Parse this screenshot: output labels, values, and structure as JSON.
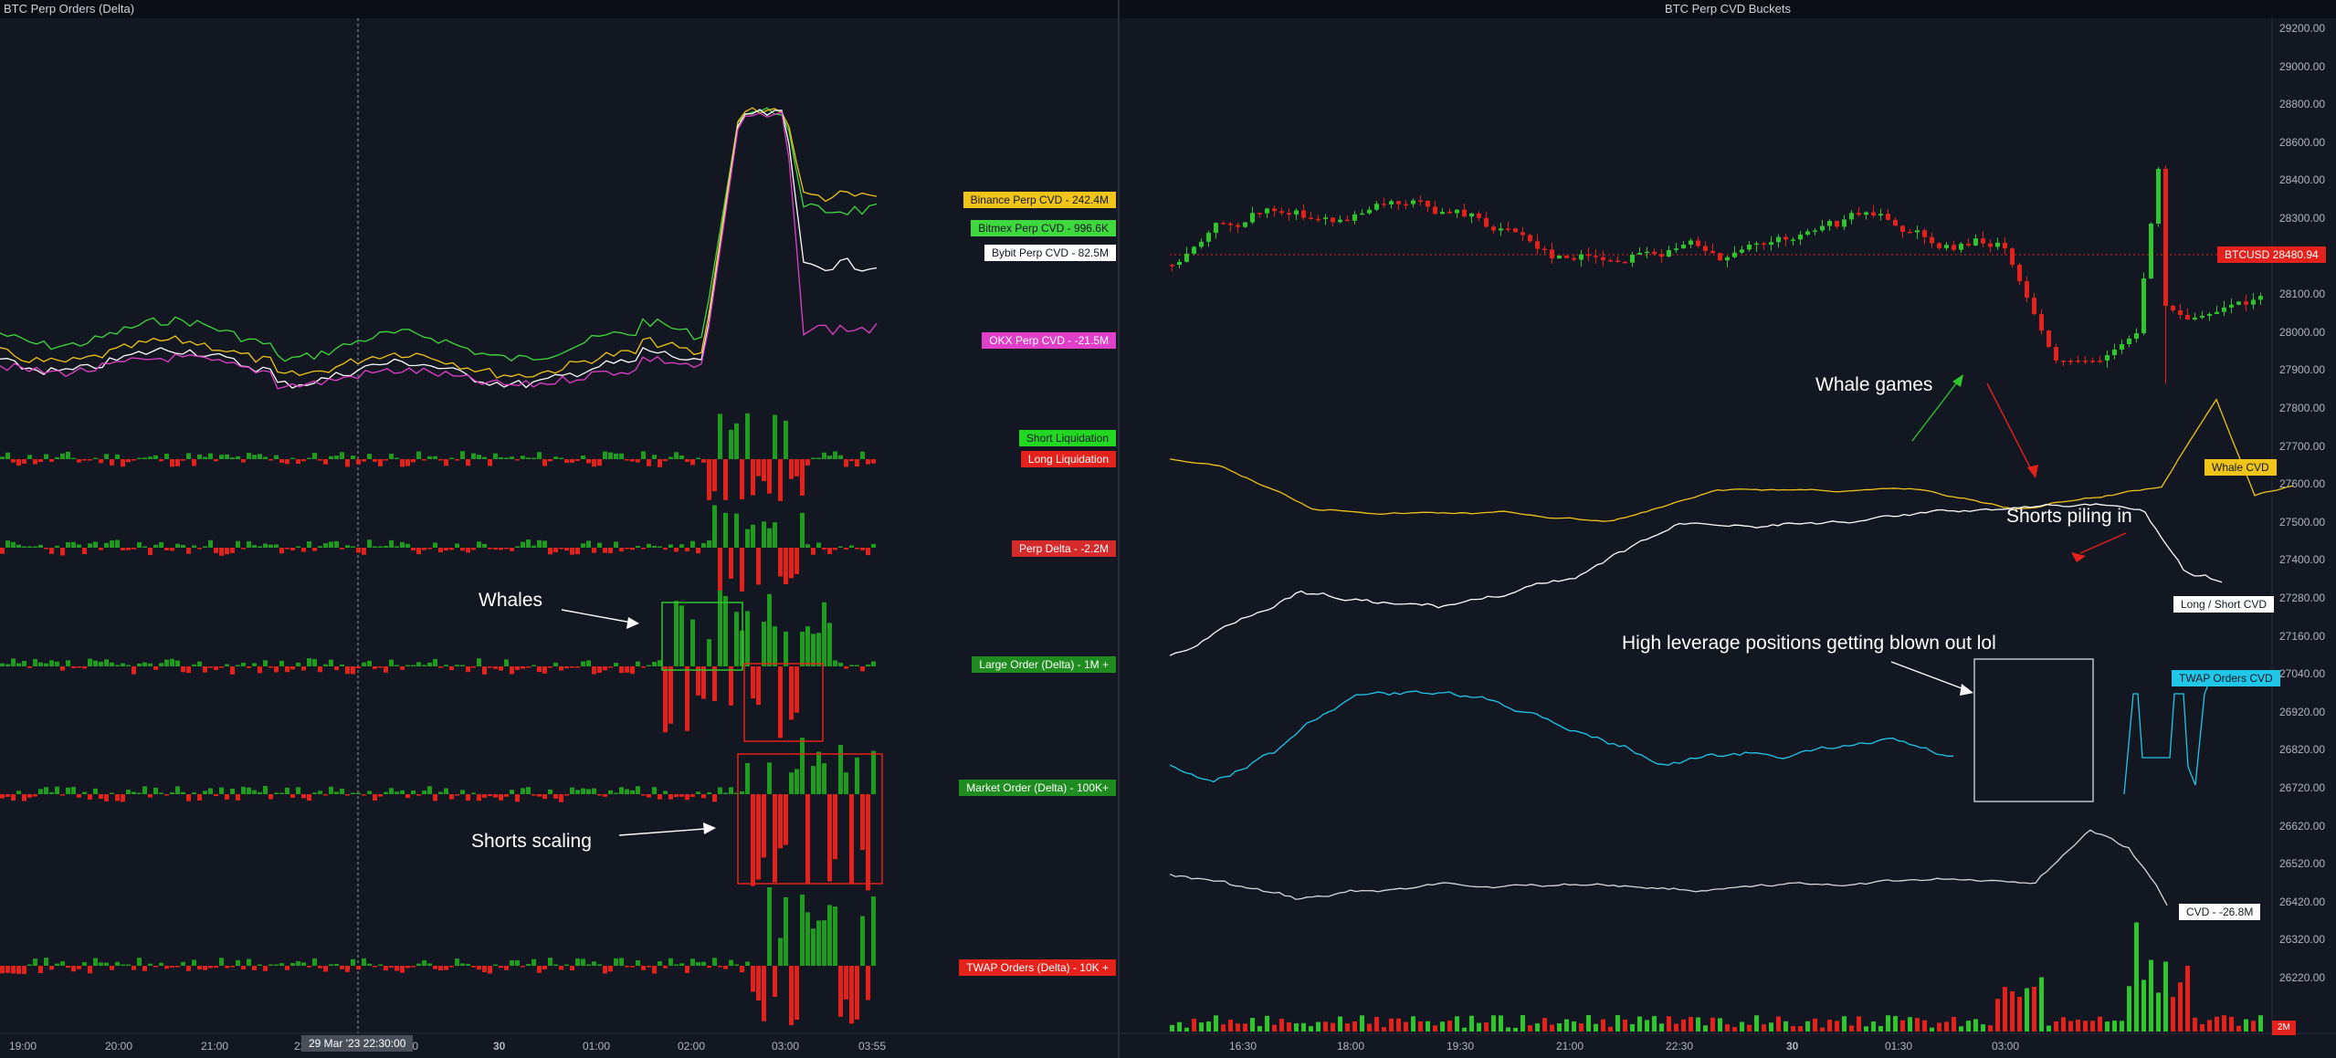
{
  "left_pane": {
    "title": "BTC Perp Orders (Delta)",
    "legend": [
      {
        "label": "Binance Perp CVD - 242.4M",
        "bg": "#f0c419",
        "fg": "#131722"
      },
      {
        "label": "Bitmex Perp CVD - 996.6K",
        "bg": "#3fd83f",
        "fg": "#131722"
      },
      {
        "label": "Bybit Perp CVD - 82.5M",
        "bg": "#ffffff",
        "fg": "#131722"
      },
      {
        "label": "OKX Perp CVD - -21.5M",
        "bg": "#e040c8",
        "fg": "#ffffff"
      },
      {
        "label": "Short Liquidation",
        "bg": "#23d823",
        "fg": "#131722"
      },
      {
        "label": "Long Liquidation",
        "bg": "#e5211b",
        "fg": "#ffffff"
      },
      {
        "label": "Perp Delta - -2.2M",
        "bg": "#d52b2b",
        "fg": "#ffffff"
      },
      {
        "label": "Large Order (Delta) - 1M +",
        "bg": "#1e8c1e",
        "fg": "#ffffff"
      },
      {
        "label": "Market Order (Delta) - 100K+",
        "bg": "#1e8c1e",
        "fg": "#ffffff"
      },
      {
        "label": "TWAP Orders (Delta) - 10K +",
        "bg": "#e5211b",
        "fg": "#ffffff"
      }
    ],
    "time_axis": [
      "19:00",
      "20:00",
      "21:00",
      "22:00",
      "23:00",
      "30",
      "01:00",
      "02:00",
      "03:00",
      "03:55"
    ],
    "crosshair_label": "29 Mar '23  22:30:00",
    "annotations": {
      "whales": "Whales",
      "shorts_scaling": "Shorts scaling"
    }
  },
  "right_pane": {
    "title": "BTC Perp CVD Buckets",
    "price_axis": [
      "29200.00",
      "29000.00",
      "28800.00",
      "28600.00",
      "28400.00",
      "28300.00",
      "28200.00",
      "28100.00",
      "28000.00",
      "27900.00",
      "27800.00",
      "27700.00",
      "27600.00",
      "27500.00",
      "27400.00",
      "27280.00",
      "27160.00",
      "27040.00",
      "26920.00",
      "26820.00",
      "26720.00",
      "26620.00",
      "26520.00",
      "26420.00",
      "26320.00",
      "26220.00"
    ],
    "last_price_tag": "BTCUSD  28480.94",
    "side_tags": [
      {
        "label": "Whale CVD",
        "bg": "#f0c419",
        "fg": "#131722"
      },
      {
        "label": "Long / Short CVD",
        "bg": "#ffffff",
        "fg": "#131722"
      },
      {
        "label": "TWAP Orders CVD",
        "bg": "#21c7e8",
        "fg": "#131722"
      },
      {
        "label": "CVD - -26.8M",
        "bg": "#ffffff",
        "fg": "#131722"
      }
    ],
    "volume_tag": "2M",
    "time_axis": [
      "16:30",
      "18:00",
      "19:30",
      "21:00",
      "22:30",
      "30",
      "01:30",
      "03:00"
    ],
    "annotations": {
      "whale_games": "Whale games",
      "shorts_piling": "Shorts piling in",
      "high_leverage": "High leverage positions getting blown out lol"
    }
  },
  "colors": {
    "background": "#131722",
    "up": "#2ec52e",
    "down": "#e5211b",
    "binance": "#f0c419",
    "bitmex": "#3fd83f",
    "bybit": "#ffffff",
    "okx": "#e040c8",
    "twap_cvd": "#21c7e8"
  }
}
